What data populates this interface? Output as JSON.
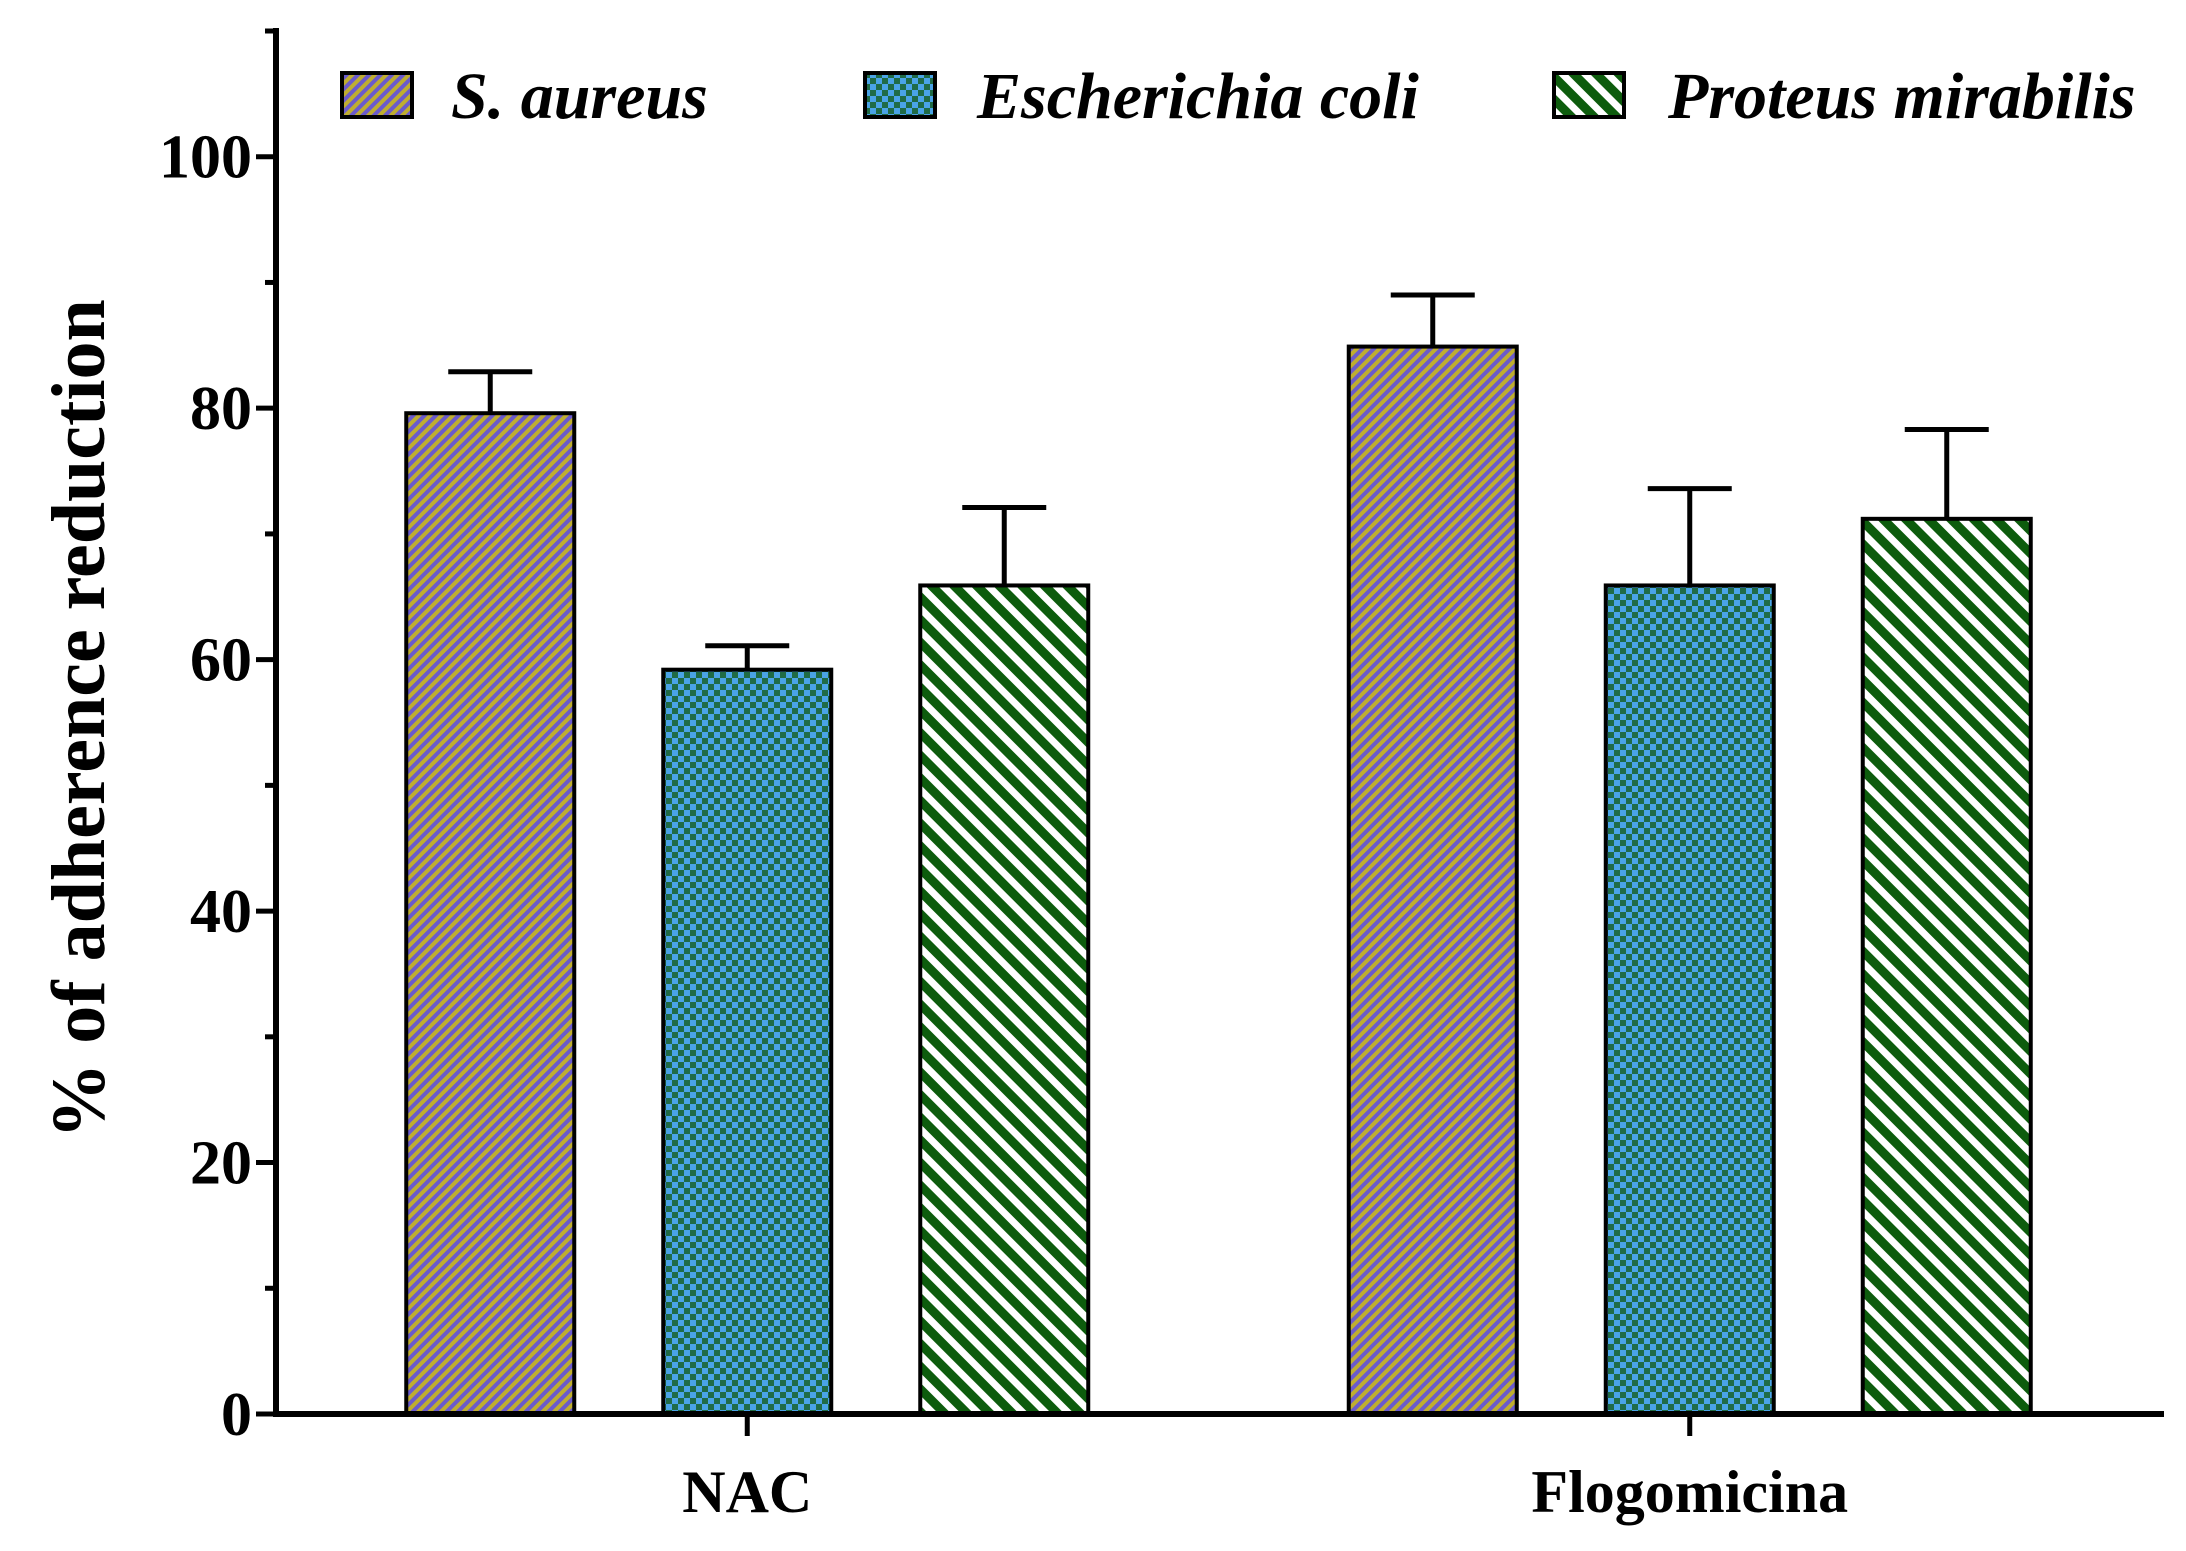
{
  "chart_data": {
    "type": "bar",
    "ylabel": "% of adherence reduction",
    "categories": [
      "NAC",
      "Flogomicina"
    ],
    "ylim": [
      0,
      110
    ],
    "y_ticks": [
      0,
      20,
      40,
      60,
      80,
      100
    ],
    "y_minor_ticks": [
      10,
      30,
      50,
      70,
      90,
      110
    ],
    "grid": false,
    "series": [
      {
        "name": "S. aureus",
        "values": [
          79.6,
          84.9
        ],
        "errors": [
          3.3,
          4.1
        ],
        "colors": [
          "#bfae2f",
          "#6a5acd"
        ]
      },
      {
        "name": "Escherichia coli",
        "values": [
          59.2,
          65.9
        ],
        "errors": [
          1.9,
          7.7
        ],
        "colors": [
          "#4aa3e6",
          "#1f6b46"
        ]
      },
      {
        "name": "Proteus mirabilis",
        "values": [
          65.9,
          71.2
        ],
        "errors": [
          6.2,
          7.1
        ],
        "colors": [
          "#0d5c0d",
          "#ffffff"
        ]
      }
    ]
  }
}
